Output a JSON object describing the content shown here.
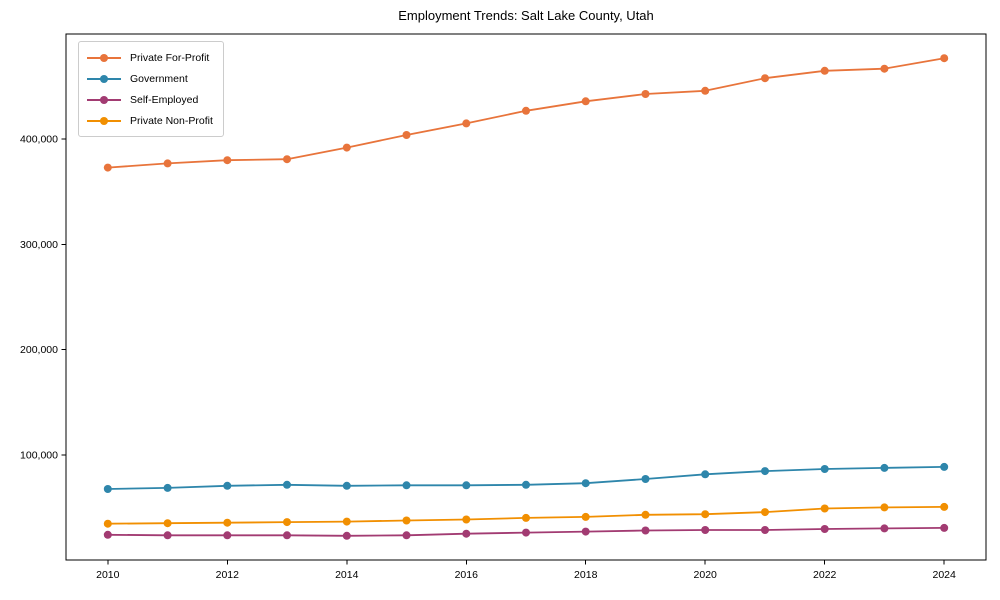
{
  "chart_data": {
    "type": "line",
    "title": "Employment Trends: Salt Lake County, Utah",
    "xlabel": "",
    "ylabel": "",
    "grid": false,
    "legend_position": "upper-left",
    "x": [
      2010,
      2011,
      2012,
      2013,
      2014,
      2015,
      2016,
      2017,
      2018,
      2019,
      2020,
      2021,
      2022,
      2023,
      2024
    ],
    "series": [
      {
        "name": "Private For-Profit",
        "color": "#E8743B",
        "values": [
          373000,
          377000,
          380000,
          381000,
          392000,
          404000,
          415000,
          427000,
          436000,
          443000,
          446000,
          458000,
          465000,
          467000,
          477000
        ]
      },
      {
        "name": "Government",
        "color": "#2E86AB",
        "values": [
          67500,
          68500,
          70500,
          71500,
          70500,
          71000,
          71000,
          71500,
          73000,
          77000,
          81500,
          84500,
          86500,
          87500,
          88500
        ]
      },
      {
        "name": "Self-Employed",
        "color": "#A23B72",
        "values": [
          24000,
          23500,
          23500,
          23500,
          23000,
          23500,
          25000,
          26000,
          27000,
          28000,
          28500,
          28500,
          29500,
          30000,
          30500
        ]
      },
      {
        "name": "Private Non-Profit",
        "color": "#F18F01",
        "values": [
          34500,
          35000,
          35500,
          36000,
          36500,
          37500,
          38500,
          40000,
          41000,
          43000,
          43500,
          45500,
          49000,
          50000,
          50500
        ]
      }
    ],
    "x_tick_values": [
      2010,
      2012,
      2014,
      2016,
      2018,
      2020,
      2022,
      2024
    ],
    "x_tick_labels": [
      "2010",
      "2012",
      "2014",
      "2016",
      "2018",
      "2020",
      "2022",
      "2024"
    ],
    "y_tick_values": [
      100000,
      200000,
      300000,
      400000
    ],
    "y_tick_labels": [
      "100,000",
      "200,000",
      "300,000",
      "400,000"
    ],
    "xlim": [
      2009.3,
      2024.7
    ],
    "ylim": [
      0,
      500000
    ]
  }
}
